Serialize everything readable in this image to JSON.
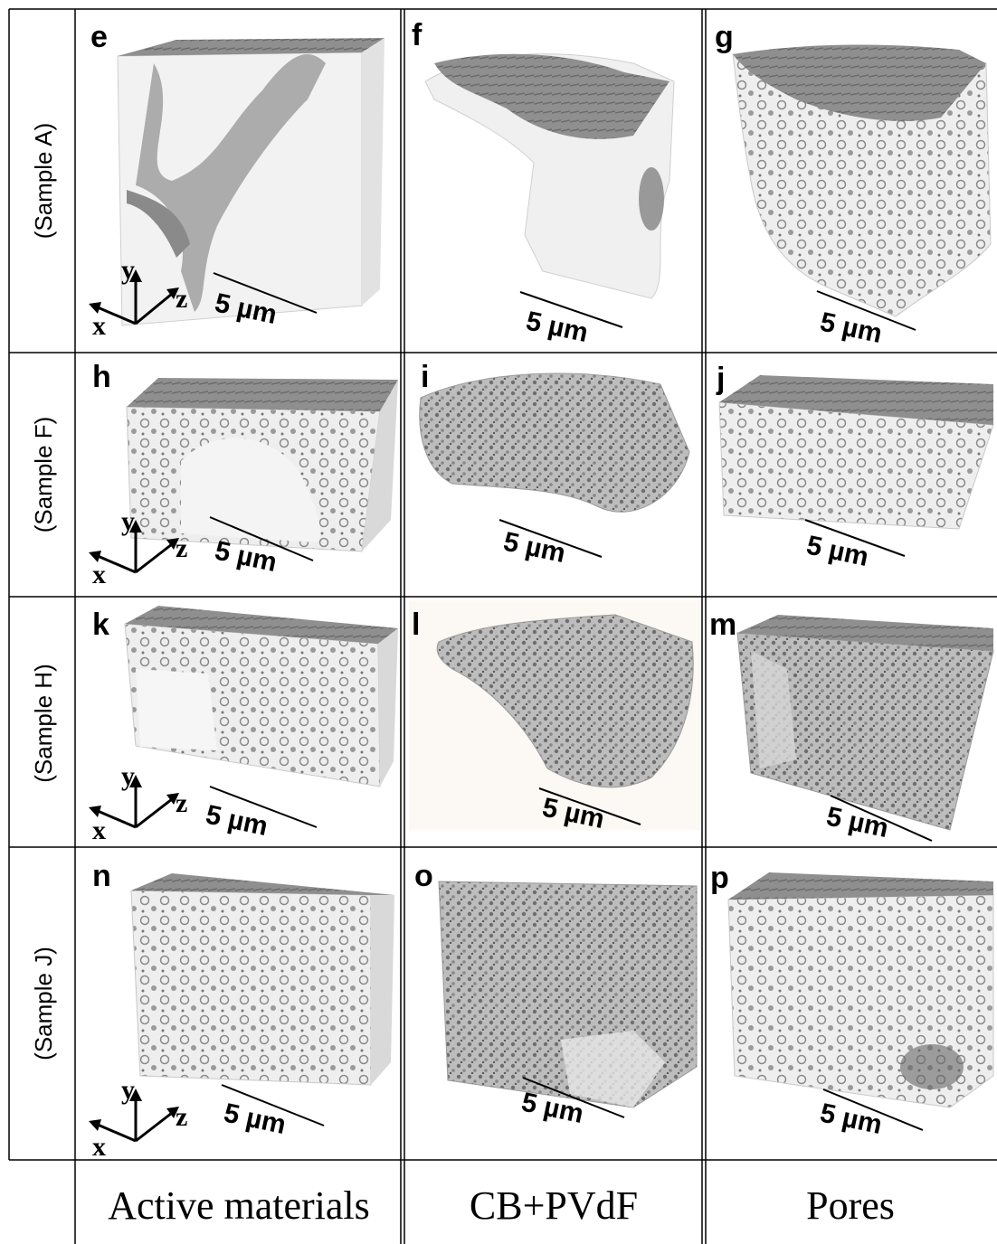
{
  "rows": [
    {
      "label": "(Sample A)"
    },
    {
      "label": "(Sample F)"
    },
    {
      "label": "(Sample H)"
    },
    {
      "label": "(Sample J)"
    }
  ],
  "columns": [
    {
      "label": "Active materials"
    },
    {
      "label": "CB+PVdF"
    },
    {
      "label": "Pores"
    }
  ],
  "panels": [
    {
      "letter": "e",
      "scale": "5 µm"
    },
    {
      "letter": "f",
      "scale": "5 µm"
    },
    {
      "letter": "g",
      "scale": "5 µm"
    },
    {
      "letter": "h",
      "scale": "5 µm"
    },
    {
      "letter": "i",
      "scale": "5 µm"
    },
    {
      "letter": "j",
      "scale": "5 µm"
    },
    {
      "letter": "k",
      "scale": "5 µm"
    },
    {
      "letter": "l",
      "scale": "5 µm"
    },
    {
      "letter": "m",
      "scale": "5 µm"
    },
    {
      "letter": "n",
      "scale": "5 µm"
    },
    {
      "letter": "o",
      "scale": "5 µm"
    },
    {
      "letter": "p",
      "scale": "5 µm"
    }
  ],
  "axes": {
    "x": "x",
    "y": "y",
    "z": "z"
  },
  "colors": {
    "line": "#000000",
    "volume_face": "#f2f2f2",
    "volume_texture": "#7a7a7a",
    "volume_top": "#8c8c8c"
  }
}
